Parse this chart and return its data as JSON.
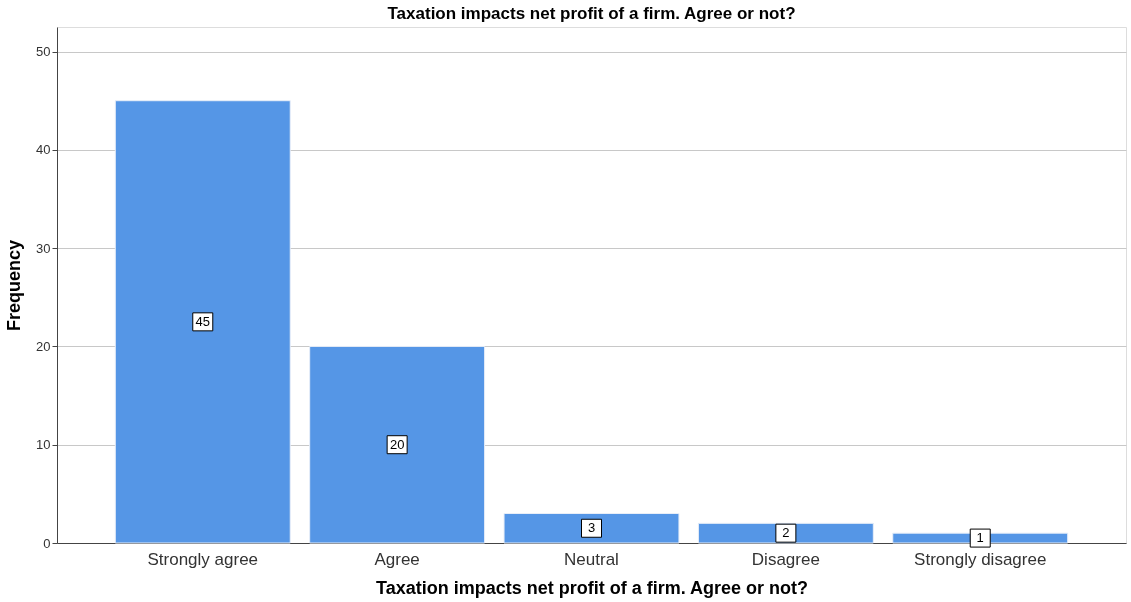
{
  "chart_data": {
    "type": "bar",
    "title": "Taxation impacts net profit of a firm. Agree or not?",
    "xlabel": "Taxation impacts net profit of a firm. Agree or not?",
    "ylabel": "Frequency",
    "categories": [
      "Strongly agree",
      "Agree",
      "Neutral",
      "Disagree",
      "Strongly disagree"
    ],
    "values": [
      45,
      20,
      3,
      2,
      1
    ],
    "color": "#5596e6",
    "ylim": [
      0,
      52.5
    ],
    "yticks": [
      0,
      10,
      20,
      30,
      40,
      50
    ],
    "grid": "y",
    "data_labels": true
  }
}
